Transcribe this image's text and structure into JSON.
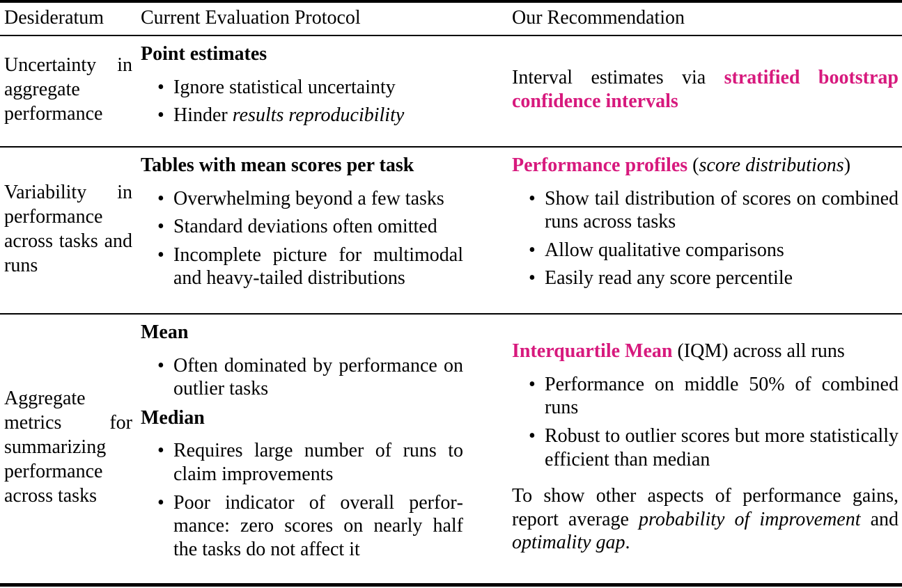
{
  "colors": {
    "accent": "#d7197d",
    "text": "#000000",
    "rule": "#000000",
    "background": "#ffffff"
  },
  "header": {
    "col1": "Desideratum",
    "col2": "Current Evaluation Protocol",
    "col3": "Our Recommendation"
  },
  "rows": [
    {
      "desideratum": "Uncertainty in aggregate performance",
      "current": {
        "heading": "Point estimates",
        "bullet1": "Ignore statistical uncertainty",
        "bullet2_pre": "Hinder ",
        "bullet2_italic": "results reproducibility"
      },
      "recommendation": {
        "para_pre": "Interval estimates via ",
        "para_highlight": "stratified bootstrap confidence intervals"
      }
    },
    {
      "desideratum": "Variability in performance across tasks and runs",
      "current": {
        "heading": "Tables with mean scores per task",
        "bullet1": "Overwhelming beyond a few tasks",
        "bullet2": "Standard deviations often omitted",
        "bullet3": "Incomplete picture for multimodal and heavy-tailed distributions"
      },
      "recommendation": {
        "heading_highlight": "Performance profiles",
        "heading_open": " (",
        "heading_italic": "score distributions",
        "heading_close": ")",
        "bullet1": "Show tail distribution of scores on com­bined runs across tasks",
        "bullet2": "Allow qualitative comparisons",
        "bullet3": "Easily read any score percentile"
      }
    },
    {
      "desideratum": "Aggregate metrics for sum­marizing performance across tasks",
      "current": {
        "heading1": "Mean",
        "mean_bullet1": "Often dominated by performance on outlier tasks",
        "heading2": "Median",
        "median_bullet1": "Requires large number of runs to claim improvements",
        "median_bullet2": "Poor indicator of overall perfor­mance: zero scores on nearly half the tasks do not affect it"
      },
      "recommendation": {
        "heading_highlight": "Interquartile Mean",
        "heading_rest": " (IQM) across all runs",
        "bullet1": "Performance on middle 50% of com­bined runs",
        "bullet2": "Robust to outlier scores but more statisti­cally efficient than median",
        "para_pre": "To show other aspects of performance gains, report average ",
        "para_italic1": "probability of improvement",
        "para_mid": " and ",
        "para_italic2": "optimality gap",
        "para_end": "."
      }
    }
  ]
}
